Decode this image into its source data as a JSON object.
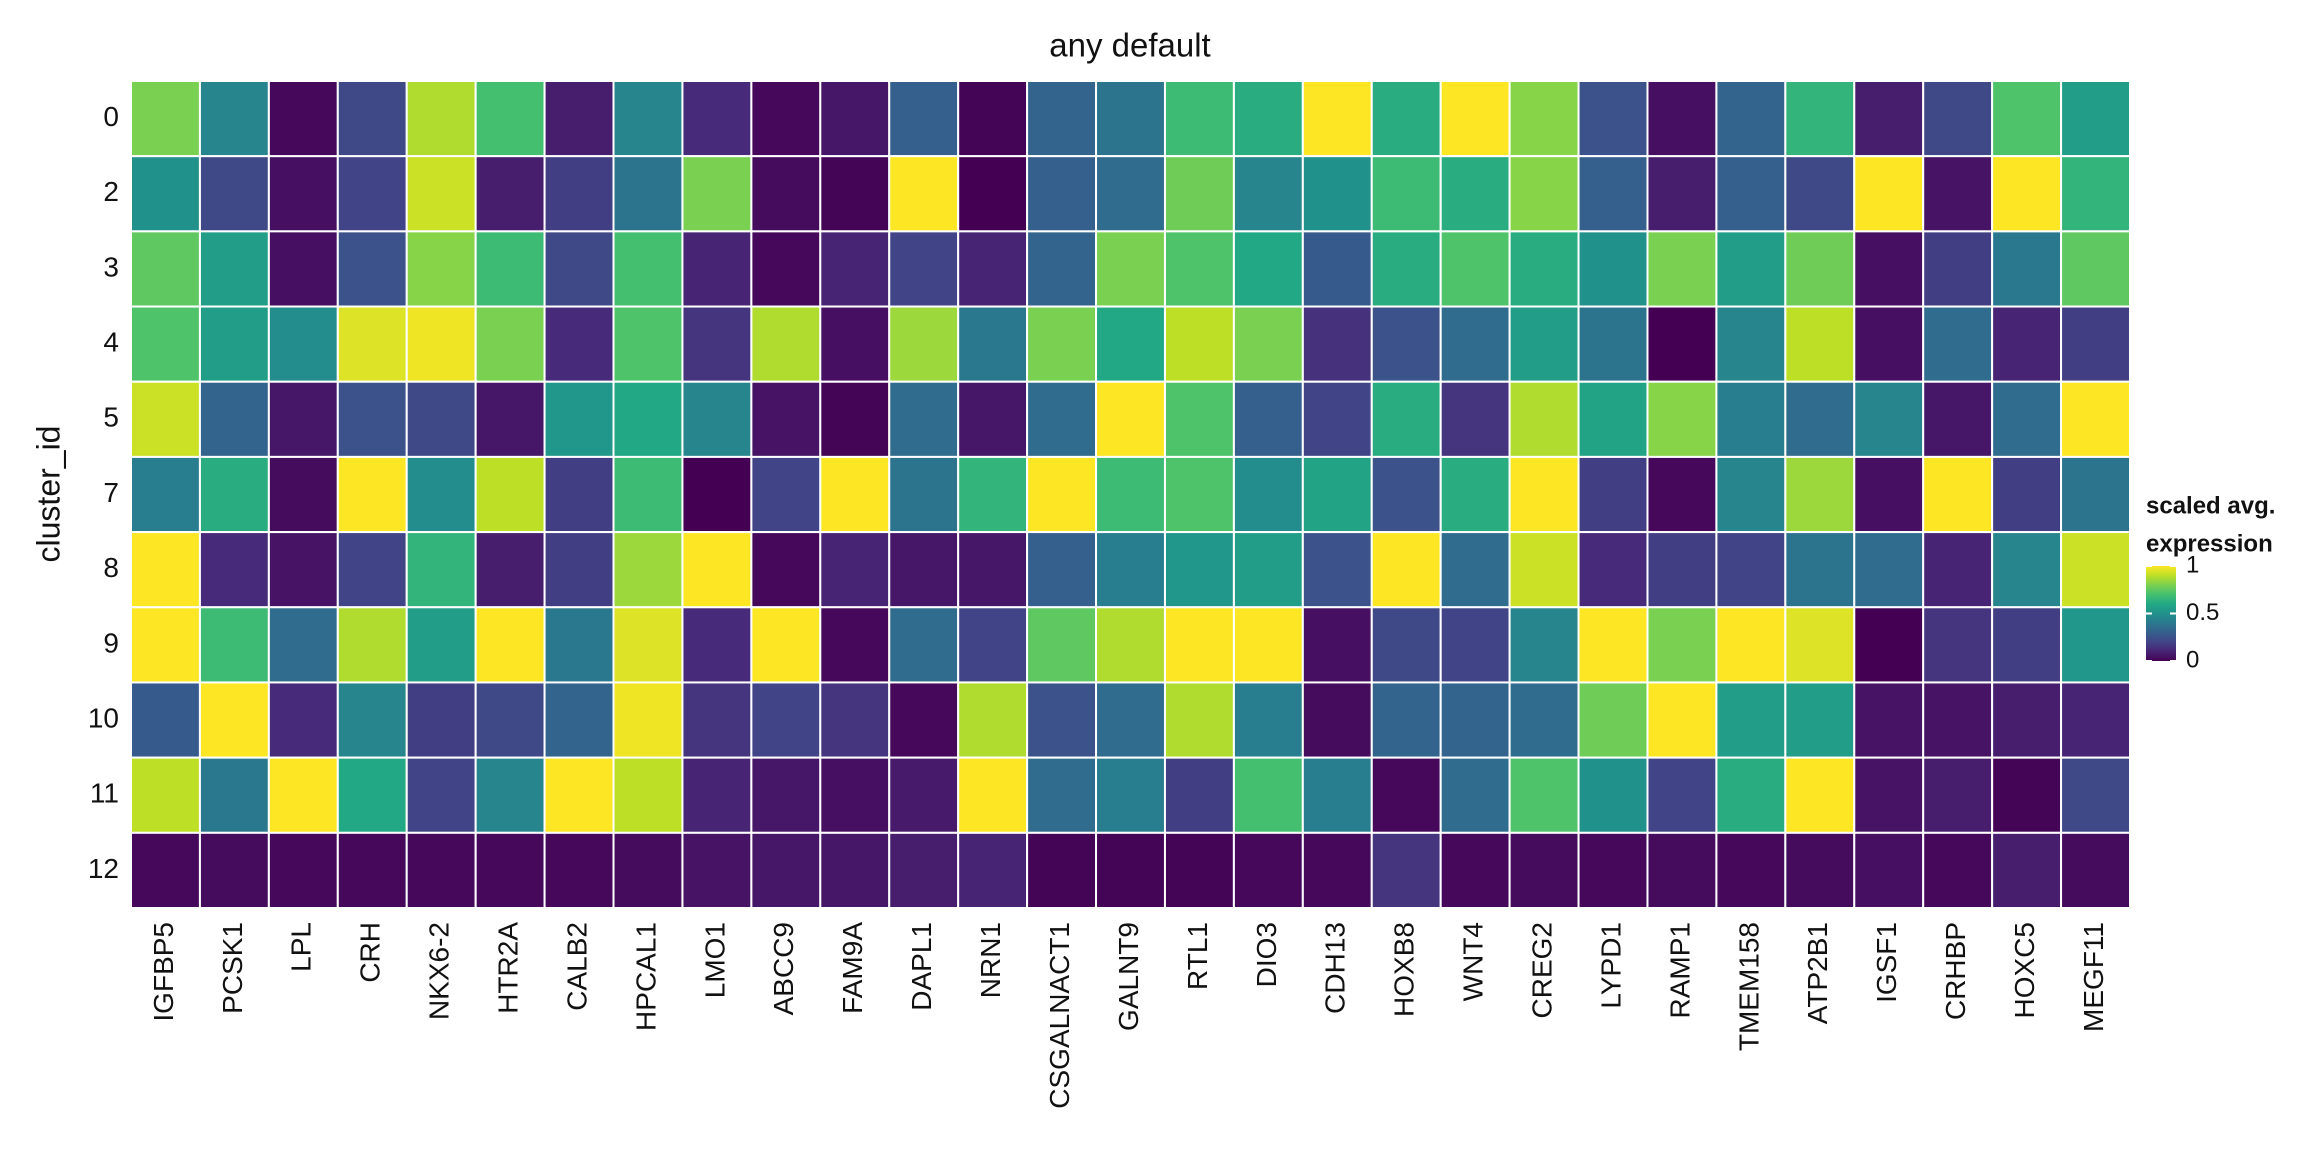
{
  "chart_data": {
    "type": "heatmap",
    "title": "any default",
    "y_label": "cluster_id",
    "legend_title": [
      "scaled avg.",
      "expression"
    ],
    "colormap": "viridis",
    "clim": [
      0,
      1
    ],
    "cticks": [
      0,
      0.5,
      1
    ],
    "rows": [
      "0",
      "2",
      "3",
      "4",
      "5",
      "7",
      "8",
      "9",
      "10",
      "11",
      "12"
    ],
    "columns": [
      "IGFBP5",
      "PCSK1",
      "LPL",
      "CRH",
      "NKX6-2",
      "HTR2A",
      "CALB2",
      "HPCAL1",
      "LMO1",
      "ABCC9",
      "FAM9A",
      "DAPL1",
      "NRN1",
      "CSGALNACT1",
      "GALNT9",
      "RTL1",
      "DIO3",
      "CDH13",
      "HOXB8",
      "WNT4",
      "CREG2",
      "LYPD1",
      "RAMP1",
      "TMEM158",
      "ATP2B1",
      "IGSF1",
      "CRHBP",
      "HOXC5",
      "MEGF11"
    ],
    "values": [
      [
        0.8,
        0.45,
        0.02,
        0.22,
        0.88,
        0.7,
        0.08,
        0.45,
        0.12,
        0.02,
        0.06,
        0.3,
        0.01,
        0.32,
        0.38,
        0.68,
        0.62,
        1,
        0.62,
        1,
        0.82,
        0.25,
        0.04,
        0.32,
        0.65,
        0.08,
        0.22,
        0.72,
        0.55
      ],
      [
        0.5,
        0.22,
        0.04,
        0.2,
        0.92,
        0.08,
        0.18,
        0.38,
        0.8,
        0.03,
        0.01,
        1,
        0,
        0.3,
        0.35,
        0.78,
        0.45,
        0.5,
        0.68,
        0.62,
        0.82,
        0.3,
        0.08,
        0.3,
        0.22,
        1,
        0.05,
        1,
        0.65
      ],
      [
        0.75,
        0.55,
        0.04,
        0.25,
        0.82,
        0.68,
        0.22,
        0.7,
        0.1,
        0.02,
        0.1,
        0.2,
        0.1,
        0.32,
        0.8,
        0.72,
        0.6,
        0.28,
        0.62,
        0.72,
        0.62,
        0.5,
        0.8,
        0.55,
        0.78,
        0.04,
        0.18,
        0.4,
        0.75
      ],
      [
        0.72,
        0.55,
        0.48,
        0.95,
        0.98,
        0.8,
        0.12,
        0.72,
        0.15,
        0.88,
        0.04,
        0.85,
        0.4,
        0.8,
        0.6,
        0.9,
        0.8,
        0.14,
        0.25,
        0.35,
        0.55,
        0.38,
        0,
        0.45,
        0.9,
        0.04,
        0.35,
        0.1,
        0.18
      ],
      [
        0.92,
        0.32,
        0.06,
        0.25,
        0.22,
        0.06,
        0.52,
        0.6,
        0.45,
        0.05,
        0.01,
        0.35,
        0.06,
        0.35,
        1,
        0.72,
        0.3,
        0.2,
        0.62,
        0.15,
        0.88,
        0.58,
        0.82,
        0.42,
        0.35,
        0.45,
        0.06,
        0.35,
        1
      ],
      [
        0.42,
        0.62,
        0.03,
        1,
        0.48,
        0.9,
        0.18,
        0.68,
        0,
        0.2,
        1,
        0.38,
        0.65,
        1,
        0.68,
        0.72,
        0.48,
        0.58,
        0.25,
        0.62,
        1,
        0.18,
        0.02,
        0.45,
        0.85,
        0.04,
        1,
        0.18,
        0.38
      ],
      [
        1,
        0.12,
        0.05,
        0.2,
        0.65,
        0.08,
        0.18,
        0.85,
        1,
        0.02,
        0.1,
        0.06,
        0.06,
        0.3,
        0.42,
        0.52,
        0.55,
        0.25,
        1,
        0.35,
        0.92,
        0.12,
        0.18,
        0.2,
        0.38,
        0.35,
        0.1,
        0.45,
        0.92
      ],
      [
        1,
        0.68,
        0.35,
        0.88,
        0.55,
        1,
        0.4,
        0.95,
        0.12,
        1,
        0.02,
        0.35,
        0.2,
        0.75,
        0.88,
        1,
        1,
        0.04,
        0.22,
        0.2,
        0.45,
        1,
        0.8,
        1,
        0.95,
        0,
        0.15,
        0.18,
        0.52
      ],
      [
        0.28,
        1,
        0.12,
        0.45,
        0.18,
        0.22,
        0.32,
        0.98,
        0.15,
        0.2,
        0.15,
        0.02,
        0.88,
        0.25,
        0.35,
        0.88,
        0.42,
        0.03,
        0.32,
        0.32,
        0.35,
        0.78,
        1,
        0.55,
        0.55,
        0.05,
        0.05,
        0.08,
        0.1
      ],
      [
        0.9,
        0.4,
        1,
        0.6,
        0.2,
        0.45,
        1,
        0.9,
        0.1,
        0.06,
        0.04,
        0.07,
        1,
        0.35,
        0.42,
        0.18,
        0.7,
        0.42,
        0.02,
        0.35,
        0.72,
        0.5,
        0.2,
        0.62,
        1,
        0.05,
        0.08,
        0.01,
        0.22
      ],
      [
        0.02,
        0.03,
        0.02,
        0.02,
        0.02,
        0.02,
        0.02,
        0.03,
        0.05,
        0.06,
        0.06,
        0.08,
        0.1,
        0.01,
        0.01,
        0.01,
        0.02,
        0.02,
        0.15,
        0.02,
        0.03,
        0.02,
        0.03,
        0.02,
        0.03,
        0.04,
        0.02,
        0.08,
        0.03
      ]
    ]
  }
}
